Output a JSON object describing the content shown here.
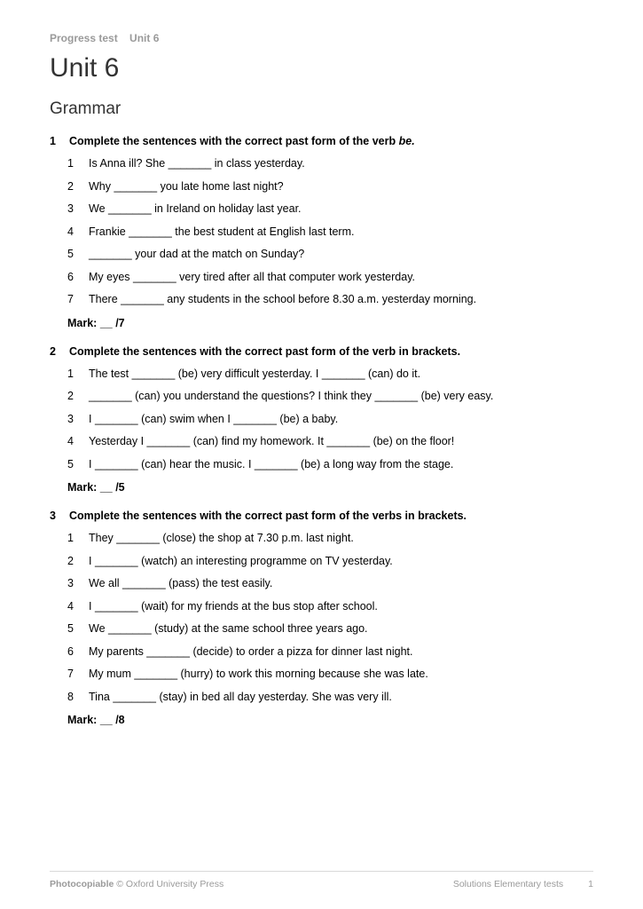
{
  "header": {
    "left": "Progress test",
    "right": "Unit 6"
  },
  "title": "Unit 6",
  "section": "Grammar",
  "exercises": [
    {
      "number": "1",
      "instruction_prefix": "Complete the sentences with the correct past form of the verb ",
      "instruction_italic": "be.",
      "items": [
        "Is Anna ill? She _______ in class yesterday.",
        "Why _______ you late home last night?",
        "We _______ in Ireland on holiday last year.",
        "Frankie _______ the best student at English last term.",
        "_______ your dad at the match on Sunday?",
        "My eyes _______ very tired after all that computer work yesterday.",
        "There _______ any students in the school before 8.30 a.m. yesterday morning."
      ],
      "mark_label": "Mark: __",
      "mark_total": "/7"
    },
    {
      "number": "2",
      "instruction_prefix": "Complete the sentences with the correct past form of the verb in brackets.",
      "instruction_italic": "",
      "items": [
        "The test _______ (be) very difficult yesterday. I _______ (can) do it.",
        "_______ (can) you understand the questions? I think they _______ (be) very easy.",
        "I _______ (can) swim when I _______ (be) a baby.",
        "Yesterday I _______ (can) find my homework. It _______ (be) on the floor!",
        "I _______ (can) hear the music. I _______ (be) a long way from the stage."
      ],
      "mark_label": "Mark: __",
      "mark_total": "/5"
    },
    {
      "number": "3",
      "instruction_prefix": "Complete the sentences with the correct past form of the verbs in brackets.",
      "instruction_italic": "",
      "items": [
        "They _______ (close) the shop at 7.30 p.m. last night.",
        "I _______ (watch) an interesting programme on TV yesterday.",
        "We all _______ (pass) the test easily.",
        "I _______ (wait) for my friends at the bus stop after school.",
        "We _______ (study) at the same school three years ago.",
        "My parents _______ (decide) to order a pizza for dinner last night.",
        "My mum _______ (hurry) to work this morning because she was late.",
        "Tina _______ (stay) in bed all day yesterday. She was very ill."
      ],
      "mark_label": "Mark: __",
      "mark_total": "/8"
    }
  ],
  "footer": {
    "left_bold": "Photocopiable",
    "left_rest": " © Oxford University Press",
    "right_text": "Solutions Elementary tests",
    "page": "1"
  }
}
